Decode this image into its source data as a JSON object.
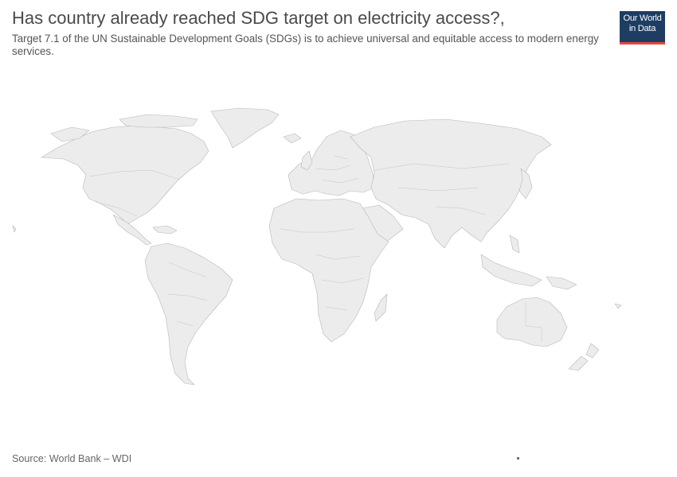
{
  "header": {
    "title": "Has country already reached SDG target on electricity access?,",
    "subtitle": "Target 7.1 of the UN Sustainable Development Goals (SDGs) is to achieve universal and equitable access to modern energy services."
  },
  "logo": {
    "line1": "Our World",
    "line2": "in Data"
  },
  "footer": {
    "source": "Source: World Bank – WDI"
  },
  "colors": {
    "land": "#ececec",
    "border": "#b7b7b7",
    "logo_bg": "#1d3d63",
    "logo_accent": "#e6493d"
  }
}
